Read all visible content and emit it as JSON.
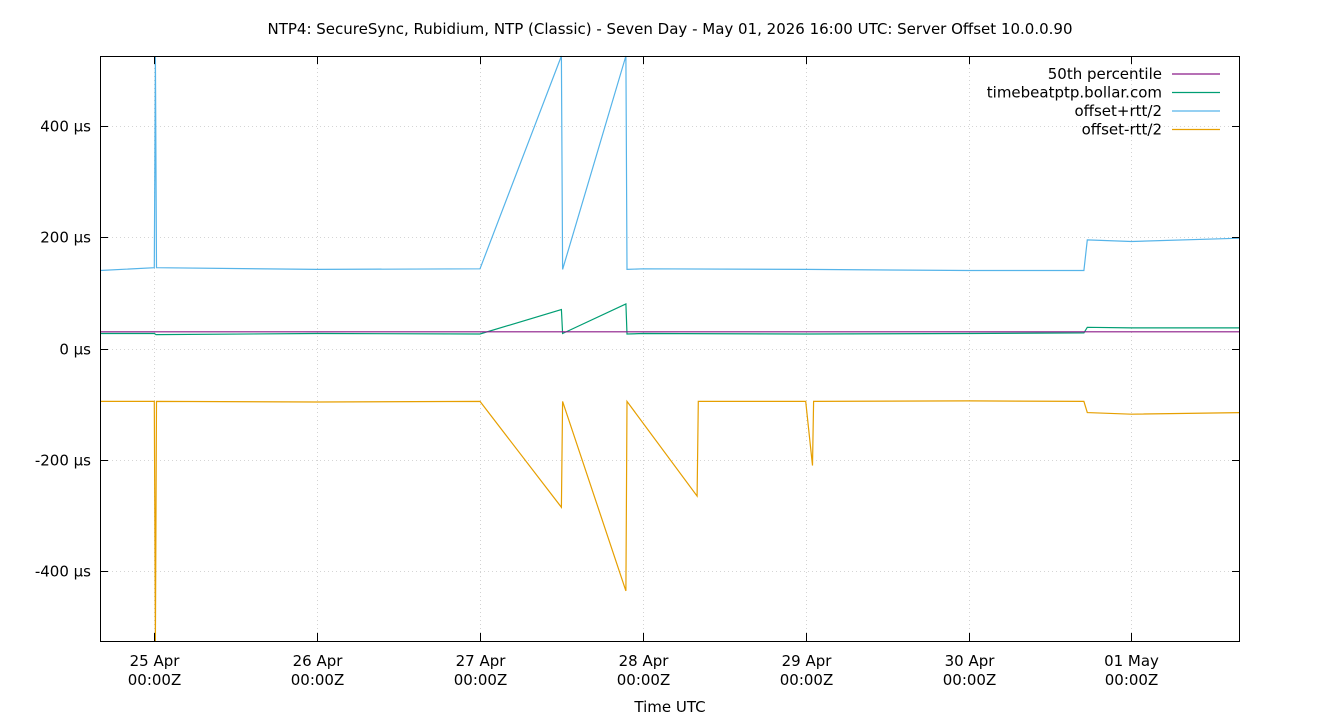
{
  "chart_data": {
    "type": "line",
    "title": "NTP4: SecureSync, Rubidium, NTP (Classic) - Seven Day - May 01, 2026 16:00 UTC: Server Offset 10.0.0.90",
    "xlabel": "Time UTC",
    "ylabel": "",
    "ylim": [
      -525,
      525
    ],
    "xlim": [
      "2026-04-24T16:00Z",
      "2026-05-01T16:00Z"
    ],
    "grid": true,
    "legend_position": "top-right",
    "y_ticks": [
      {
        "value": 400,
        "label": "400 µs"
      },
      {
        "value": 200,
        "label": "200 µs"
      },
      {
        "value": 0,
        "label": "0 µs"
      },
      {
        "value": -200,
        "label": "-200 µs"
      },
      {
        "value": -400,
        "label": "-400 µs"
      }
    ],
    "x_ticks": [
      {
        "value": "2026-04-25T00:00Z",
        "line1": "25 Apr",
        "line2": "00:00Z"
      },
      {
        "value": "2026-04-26T00:00Z",
        "line1": "26 Apr",
        "line2": "00:00Z"
      },
      {
        "value": "2026-04-27T00:00Z",
        "line1": "27 Apr",
        "line2": "00:00Z"
      },
      {
        "value": "2026-04-28T00:00Z",
        "line1": "28 Apr",
        "line2": "00:00Z"
      },
      {
        "value": "2026-04-29T00:00Z",
        "line1": "29 Apr",
        "line2": "00:00Z"
      },
      {
        "value": "2026-04-30T00:00Z",
        "line1": "30 Apr",
        "line2": "00:00Z"
      },
      {
        "value": "2026-05-01T00:00Z",
        "line1": "01 May",
        "line2": "00:00Z"
      }
    ],
    "series": [
      {
        "name": "50th percentile",
        "color": "#8b1a89",
        "points": [
          [
            "2026-04-24T16:00Z",
            30
          ],
          [
            "2026-05-01T16:00Z",
            30
          ]
        ]
      },
      {
        "name": "timebeatptp.bollar.com",
        "color": "#009e73",
        "points": [
          [
            "2026-04-24T16:00Z",
            27
          ],
          [
            "2026-04-25T00:00Z",
            27
          ],
          [
            "2026-04-25T00:15Z",
            25
          ],
          [
            "2026-04-26T00:00Z",
            27
          ],
          [
            "2026-04-27T00:00Z",
            26
          ],
          [
            "2026-04-27T12:00Z",
            70
          ],
          [
            "2026-04-27T12:10Z",
            27
          ],
          [
            "2026-04-27T21:30Z",
            80
          ],
          [
            "2026-04-27T21:40Z",
            26
          ],
          [
            "2026-04-28T00:00Z",
            27
          ],
          [
            "2026-04-29T00:00Z",
            26
          ],
          [
            "2026-04-30T00:00Z",
            27
          ],
          [
            "2026-04-30T17:00Z",
            28
          ],
          [
            "2026-04-30T17:30Z",
            38
          ],
          [
            "2026-05-01T00:00Z",
            37
          ],
          [
            "2026-05-01T16:00Z",
            37
          ]
        ]
      },
      {
        "name": "offset+rtt/2",
        "color": "#56b4e9",
        "points": [
          [
            "2026-04-24T16:00Z",
            140
          ],
          [
            "2026-04-25T00:00Z",
            145
          ],
          [
            "2026-04-25T00:10Z",
            525
          ],
          [
            "2026-04-25T00:20Z",
            145
          ],
          [
            "2026-04-26T00:00Z",
            142
          ],
          [
            "2026-04-27T00:00Z",
            143
          ],
          [
            "2026-04-27T12:00Z",
            525
          ],
          [
            "2026-04-27T12:10Z",
            142
          ],
          [
            "2026-04-27T21:30Z",
            525
          ],
          [
            "2026-04-27T21:40Z",
            142
          ],
          [
            "2026-04-28T00:00Z",
            143
          ],
          [
            "2026-04-29T00:00Z",
            142
          ],
          [
            "2026-04-30T00:00Z",
            140
          ],
          [
            "2026-04-30T17:00Z",
            140
          ],
          [
            "2026-04-30T17:30Z",
            195
          ],
          [
            "2026-05-01T00:00Z",
            192
          ],
          [
            "2026-05-01T16:00Z",
            198
          ]
        ]
      },
      {
        "name": "offset-rtt/2",
        "color": "#e69f00",
        "points": [
          [
            "2026-04-24T16:00Z",
            -95
          ],
          [
            "2026-04-25T00:00Z",
            -95
          ],
          [
            "2026-04-25T00:10Z",
            -525
          ],
          [
            "2026-04-25T00:20Z",
            -95
          ],
          [
            "2026-04-26T00:00Z",
            -96
          ],
          [
            "2026-04-27T00:00Z",
            -95
          ],
          [
            "2026-04-27T12:00Z",
            -285
          ],
          [
            "2026-04-27T12:10Z",
            -95
          ],
          [
            "2026-04-27T21:30Z",
            -435
          ],
          [
            "2026-04-27T21:40Z",
            -95
          ],
          [
            "2026-04-28T08:00Z",
            -265
          ],
          [
            "2026-04-28T08:10Z",
            -95
          ],
          [
            "2026-04-29T00:00Z",
            -95
          ],
          [
            "2026-04-29T01:00Z",
            -210
          ],
          [
            "2026-04-29T01:10Z",
            -95
          ],
          [
            "2026-04-30T00:00Z",
            -94
          ],
          [
            "2026-04-30T17:00Z",
            -95
          ],
          [
            "2026-04-30T17:30Z",
            -115
          ],
          [
            "2026-05-01T00:00Z",
            -118
          ],
          [
            "2026-05-01T16:00Z",
            -115
          ]
        ]
      }
    ]
  }
}
